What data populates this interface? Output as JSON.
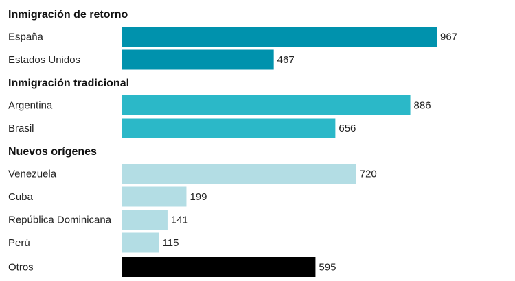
{
  "chart_data": {
    "type": "bar",
    "orientation": "horizontal",
    "title": "",
    "xlabel": "",
    "ylabel": "",
    "xlim": [
      0,
      967
    ],
    "grid": false,
    "legend": "none",
    "groups": [
      {
        "title": "Inmigración de retorno",
        "color": "#0092ad",
        "items": [
          {
            "category": "España",
            "value": 967
          },
          {
            "category": "Estados Unidos",
            "value": 467
          }
        ]
      },
      {
        "title": "Inmigración tradicional",
        "color": "#2bb8c8",
        "items": [
          {
            "category": "Argentina",
            "value": 886
          },
          {
            "category": "Brasil",
            "value": 656
          }
        ]
      },
      {
        "title": "Nuevos orígenes",
        "color": "#b3dde4",
        "items": [
          {
            "category": "Venezuela",
            "value": 720
          },
          {
            "category": "Cuba",
            "value": 199
          },
          {
            "category": "República Dominicana",
            "value": 141
          },
          {
            "category": "Perú",
            "value": 115
          }
        ]
      },
      {
        "title": "",
        "color": "#000000",
        "items": [
          {
            "category": "Otros",
            "value": 595
          }
        ]
      }
    ]
  }
}
